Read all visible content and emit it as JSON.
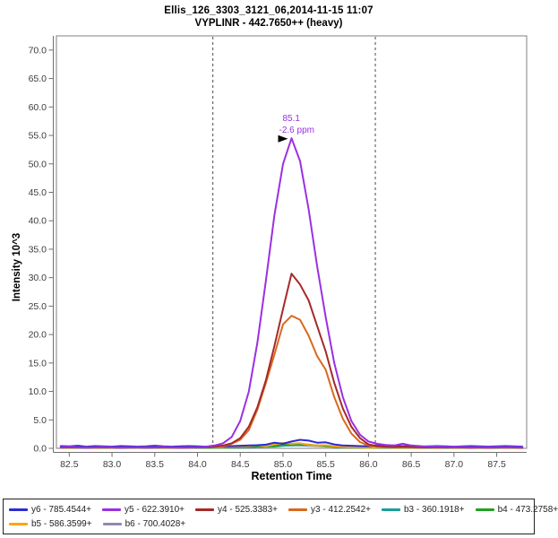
{
  "title": {
    "line1": "Ellis_126_3303_3121_06,2014-11-15 11:07",
    "line2": "VYPLINR - 442.7650++ (heavy)"
  },
  "chart_data": {
    "type": "line",
    "title": "Ellis_126_3303_3121_06,2014-11-15 11:07",
    "subtitle": "VYPLINR - 442.7650++ (heavy)",
    "xlabel": "Retention Time",
    "ylabel": "Intensity 10^3",
    "xlim": [
      82.35,
      87.85
    ],
    "ylim": [
      0,
      72.5
    ],
    "grid": false,
    "legend_position": "bottom",
    "x_ticks": {
      "values": [
        82.5,
        83.0,
        83.5,
        84.0,
        84.5,
        85.0,
        85.5,
        86.0,
        86.5,
        87.0,
        87.5
      ],
      "labels": [
        "82.5",
        "83.0",
        "83.5",
        "84.0",
        "84.5",
        "85.0",
        "85.5",
        "86.0",
        "86.5",
        "87.0",
        "87.5"
      ]
    },
    "y_ticks": {
      "values": [
        0,
        5,
        10,
        15,
        20,
        25,
        30,
        35,
        40,
        45,
        50,
        55,
        60,
        65,
        70
      ],
      "labels": [
        "0.0",
        "5.0",
        "10.0",
        "15.0",
        "20.0",
        "25.0",
        "30.0",
        "35.0",
        "40.0",
        "45.0",
        "50.0",
        "55.0",
        "60.0",
        "65.0",
        "70.0"
      ]
    },
    "peak_boundaries": [
      84.18,
      86.08
    ],
    "annotation": {
      "rt": "85.1",
      "ppm": "-2.6 ppm",
      "x": 85.1,
      "y": 54.5
    },
    "colors": {
      "frame": "#808080",
      "axis": "#707070",
      "tick_label": "#3C3C3C",
      "boundary": "#4A4A4A",
      "annotation": "#9B30E2",
      "arrow": "#000000"
    },
    "x": [
      82.4,
      82.5,
      82.6,
      82.7,
      82.8,
      82.9,
      83.0,
      83.1,
      83.2,
      83.3,
      83.4,
      83.5,
      83.6,
      83.7,
      83.8,
      83.9,
      84.0,
      84.1,
      84.2,
      84.3,
      84.4,
      84.5,
      84.6,
      84.7,
      84.8,
      84.9,
      85.0,
      85.1,
      85.2,
      85.3,
      85.4,
      85.5,
      85.6,
      85.7,
      85.8,
      85.9,
      86.0,
      86.1,
      86.2,
      86.3,
      86.4,
      86.5,
      86.6,
      86.7,
      86.8,
      86.9,
      87.0,
      87.1,
      87.2,
      87.3,
      87.4,
      87.5,
      87.6,
      87.7,
      87.8
    ],
    "series": [
      {
        "id": "y6",
        "label": "y6 - 785.4544+",
        "color": "#2B2BD5",
        "values": [
          0.4,
          0.35,
          0.45,
          0.3,
          0.4,
          0.35,
          0.3,
          0.4,
          0.35,
          0.3,
          0.35,
          0.45,
          0.35,
          0.3,
          0.35,
          0.4,
          0.35,
          0.3,
          0.4,
          0.35,
          0.4,
          0.45,
          0.5,
          0.55,
          0.65,
          1.0,
          0.8,
          1.2,
          1.5,
          1.35,
          1.0,
          1.05,
          0.7,
          0.5,
          0.45,
          0.4,
          0.35,
          0.45,
          0.4,
          0.35,
          0.4,
          0.35,
          0.3,
          0.35,
          0.4,
          0.35,
          0.3,
          0.35,
          0.4,
          0.35,
          0.3,
          0.35,
          0.4,
          0.35,
          0.3
        ]
      },
      {
        "id": "y5",
        "label": "y5 - 622.3910+",
        "color": "#9B30E2",
        "values": [
          0.2,
          0.3,
          0.2,
          0.15,
          0.2,
          0.25,
          0.2,
          0.15,
          0.2,
          0.2,
          0.15,
          0.2,
          0.25,
          0.2,
          0.15,
          0.2,
          0.2,
          0.3,
          0.5,
          0.9,
          2.0,
          4.8,
          10.0,
          18.5,
          29.5,
          41.0,
          50.0,
          54.5,
          50.5,
          42.0,
          32.0,
          23.0,
          15.0,
          9.0,
          4.8,
          2.4,
          1.2,
          0.8,
          0.6,
          0.5,
          0.8,
          0.5,
          0.4,
          0.3,
          0.3,
          0.25,
          0.3,
          0.25,
          0.2,
          0.25,
          0.2,
          0.25,
          0.2,
          0.25,
          0.2
        ]
      },
      {
        "id": "y4",
        "label": "y4 - 525.3383+",
        "color": "#A52A2A",
        "values": [
          0.15,
          0.2,
          0.15,
          0.1,
          0.15,
          0.2,
          0.15,
          0.1,
          0.15,
          0.15,
          0.1,
          0.15,
          0.2,
          0.15,
          0.1,
          0.15,
          0.15,
          0.2,
          0.3,
          0.5,
          0.9,
          1.8,
          3.8,
          7.2,
          12.0,
          18.0,
          24.5,
          30.7,
          28.8,
          26.0,
          21.5,
          17.0,
          11.5,
          7.0,
          3.8,
          1.8,
          0.7,
          0.4,
          0.3,
          0.25,
          0.3,
          0.25,
          0.2,
          0.15,
          0.2,
          0.15,
          0.2,
          0.15,
          0.1,
          0.15,
          0.1,
          0.15,
          0.2,
          0.15,
          0.1
        ]
      },
      {
        "id": "y3",
        "label": "y3 - 412.2542+",
        "color": "#D9691E",
        "values": [
          0.1,
          0.15,
          0.1,
          0.2,
          0.1,
          0.15,
          0.1,
          0.15,
          0.1,
          0.15,
          0.2,
          0.1,
          0.15,
          0.1,
          0.15,
          0.1,
          0.15,
          0.2,
          0.25,
          0.4,
          0.8,
          1.5,
          3.2,
          6.8,
          11.5,
          16.5,
          21.8,
          23.3,
          22.6,
          19.8,
          16.2,
          13.8,
          9.0,
          5.2,
          2.6,
          1.1,
          0.5,
          0.3,
          0.2,
          0.15,
          0.2,
          0.15,
          0.1,
          0.15,
          0.1,
          0.15,
          0.1,
          0.15,
          0.1,
          0.15,
          0.1,
          0.15,
          0.1,
          0.15,
          0.1
        ]
      },
      {
        "id": "b3",
        "label": "b3 - 360.1918+",
        "color": "#1B9E98",
        "values": [
          0.1,
          0.12,
          0.1,
          0.08,
          0.1,
          0.12,
          0.1,
          0.08,
          0.1,
          0.12,
          0.1,
          0.08,
          0.1,
          0.12,
          0.1,
          0.08,
          0.1,
          0.12,
          0.1,
          0.12,
          0.15,
          0.18,
          0.2,
          0.25,
          0.28,
          0.3,
          0.45,
          0.5,
          0.55,
          0.6,
          0.5,
          0.45,
          0.3,
          0.2,
          0.15,
          0.12,
          0.1,
          0.12,
          0.1,
          0.08,
          0.1,
          0.12,
          0.1,
          0.08,
          0.1,
          0.12,
          0.1,
          0.08,
          0.1,
          0.12,
          0.1,
          0.08,
          0.1,
          0.12,
          0.1
        ]
      },
      {
        "id": "b4",
        "label": "b4 - 473.2758+",
        "color": "#21A121",
        "values": [
          0.12,
          0.1,
          0.12,
          0.14,
          0.1,
          0.12,
          0.1,
          0.14,
          0.12,
          0.1,
          0.12,
          0.14,
          0.1,
          0.12,
          0.1,
          0.14,
          0.12,
          0.1,
          0.12,
          0.15,
          0.18,
          0.22,
          0.28,
          0.35,
          0.45,
          0.4,
          0.6,
          0.75,
          0.8,
          0.65,
          0.5,
          0.35,
          0.25,
          0.18,
          0.14,
          0.12,
          0.1,
          0.12,
          0.14,
          0.1,
          0.12,
          0.1,
          0.14,
          0.12,
          0.1,
          0.12,
          0.14,
          0.1,
          0.12,
          0.1,
          0.14,
          0.12,
          0.1,
          0.12,
          0.1
        ]
      },
      {
        "id": "b5",
        "label": "b5 - 586.3599+",
        "color": "#FFA40A",
        "values": [
          0.15,
          0.12,
          0.15,
          0.18,
          0.12,
          0.15,
          0.12,
          0.18,
          0.15,
          0.12,
          0.15,
          0.18,
          0.12,
          0.15,
          0.12,
          0.18,
          0.15,
          0.25,
          0.2,
          0.25,
          0.3,
          0.35,
          0.4,
          0.55,
          0.4,
          0.7,
          0.95,
          0.8,
          0.9,
          0.6,
          0.5,
          0.55,
          0.35,
          0.25,
          0.2,
          0.15,
          0.12,
          0.15,
          0.18,
          0.12,
          0.15,
          0.12,
          0.18,
          0.15,
          0.12,
          0.15,
          0.18,
          0.12,
          0.15,
          0.12,
          0.18,
          0.15,
          0.12,
          0.15,
          0.12
        ]
      },
      {
        "id": "b6",
        "label": "b6 - 700.4028+",
        "color": "#8A8ABC",
        "values": [
          0.2,
          0.18,
          0.22,
          0.2,
          0.18,
          0.22,
          0.2,
          0.18,
          0.2,
          0.22,
          0.18,
          0.2,
          0.22,
          0.2,
          0.18,
          0.2,
          0.22,
          0.18,
          0.2,
          0.22,
          0.25,
          0.28,
          0.3,
          0.35,
          0.4,
          0.45,
          0.5,
          0.55,
          0.5,
          0.45,
          0.4,
          0.35,
          0.3,
          0.28,
          0.25,
          0.3,
          0.4,
          0.6,
          0.45,
          0.5,
          0.35,
          0.3,
          0.25,
          0.22,
          0.2,
          0.22,
          0.25,
          0.2,
          0.22,
          0.2,
          0.25,
          0.2,
          0.22,
          0.2,
          0.22
        ]
      }
    ],
    "draw_order": [
      "b6",
      "b3",
      "b4",
      "b5",
      "y6",
      "y3",
      "y4",
      "y5"
    ]
  },
  "legend": {
    "rows": [
      [
        "y6",
        "y5",
        "y4",
        "y3",
        "b3",
        "b4"
      ],
      [
        "b5",
        "b6"
      ]
    ]
  }
}
